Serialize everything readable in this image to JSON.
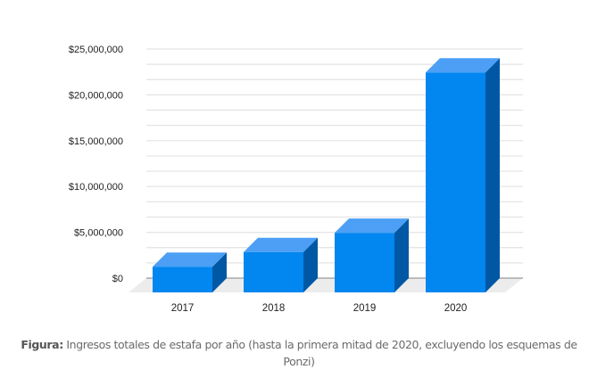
{
  "chart_data": {
    "type": "bar",
    "style": "3d",
    "title": "",
    "xlabel": "",
    "ylabel": "",
    "categories": [
      "2017",
      "2018",
      "2019",
      "2020"
    ],
    "values": [
      2800000,
      4400000,
      6500000,
      24000000
    ],
    "ylim": [
      0,
      25000000
    ],
    "yticks": [
      0,
      5000000,
      10000000,
      15000000,
      20000000,
      25000000
    ],
    "ytick_labels": [
      "$0",
      "$5,000,000",
      "$10,000,000",
      "$15,000,000",
      "$20,000,000",
      "$25,000,000"
    ],
    "grid": true,
    "legend": "none",
    "colors": {
      "front": "#0286f0",
      "top": "#4c9ff5",
      "side": "#0058a4",
      "floor": "#ececec",
      "grid": "#e3e3e3",
      "baseline": "#9a9a9a"
    }
  },
  "caption": {
    "label": "Figura:",
    "text": " Ingresos totales de estafa por año (hasta la primera mitad de 2020, excluyendo los esquemas de Ponzi)"
  }
}
